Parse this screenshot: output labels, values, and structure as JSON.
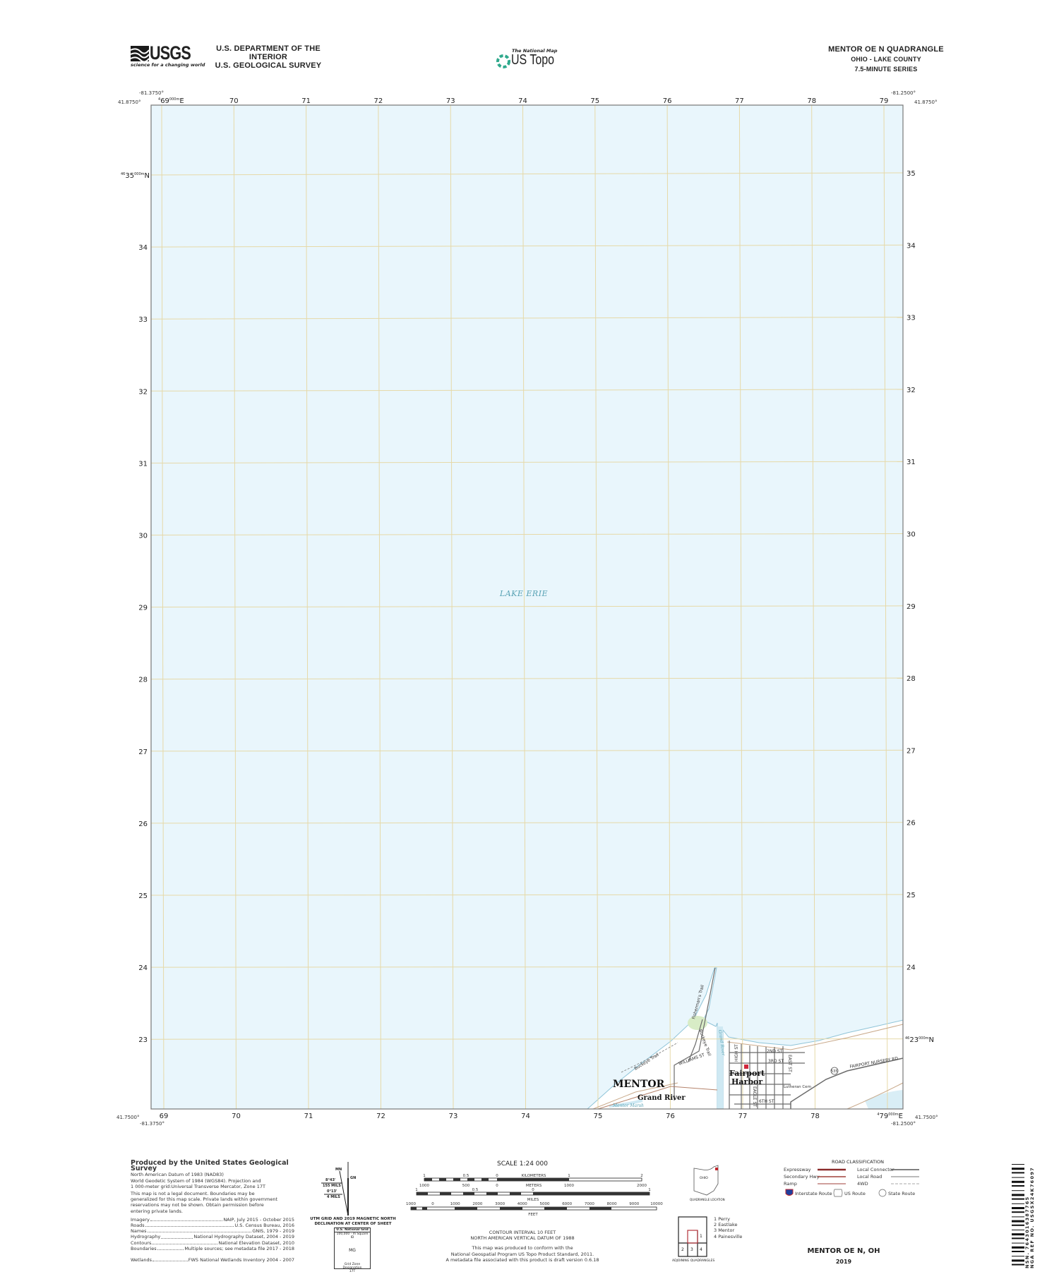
{
  "header": {
    "logo": "USGS",
    "logo_tagline": "science for a changing world",
    "dept_line1": "U.S. DEPARTMENT OF THE INTERIOR",
    "dept_line2": "U.S. GEOLOGICAL SURVEY",
    "national_map": "The National Map",
    "us_topo": "US Topo",
    "quad_title": "MENTOR OE N QUADRANGLE",
    "quad_state": "OHIO - LAKE COUNTY",
    "quad_series": "7.5-MINUTE SERIES"
  },
  "map": {
    "colors": {
      "water": "#e9f6fc",
      "grid": "#e6d9a8",
      "land": "#ffffff",
      "road": "#6b6b6b",
      "highway": "#b5836b",
      "label_water": "#5aa3b5"
    },
    "corners": {
      "top_left_lon": "-81.3750°",
      "top_left_lat": "41.8750°",
      "top_right_lon": "-81.2500°",
      "top_right_lat": "41.8750°",
      "bottom_left_lon": "-81.3750°",
      "bottom_left_lat": "41.7500°",
      "bottom_right_lon": "-81.2500°",
      "bottom_right_lat": "41.7500°"
    },
    "easting_labels": [
      "69",
      "70",
      "71",
      "72",
      "73",
      "74",
      "75",
      "76",
      "77",
      "78",
      "79"
    ],
    "easting_first": {
      "prefix": "4",
      "value": "69",
      "sup": "000m",
      "suffix": "E"
    },
    "easting_last_bottom": {
      "prefix": "4",
      "value": "79",
      "sup": "000m",
      "suffix": "E"
    },
    "northing_labels": [
      "35",
      "34",
      "33",
      "32",
      "31",
      "30",
      "29",
      "28",
      "27",
      "26",
      "25",
      "24",
      "23"
    ],
    "northing_first": {
      "prefix": "46",
      "value": "35",
      "sup": "000m",
      "suffix": "N"
    },
    "northing_last_right": {
      "prefix": "46",
      "value": "23",
      "sup": "000m",
      "suffix": "N"
    },
    "water_label": "LAKE ERIE",
    "places": {
      "mentor": "MENTOR",
      "grand_river_town": "Grand River",
      "fairport_1": "Fairport",
      "fairport_2": "Harbor",
      "mentor_marsh": "Mentor Marsh",
      "grand_river": "Grand River",
      "lutheran": "Lutheran Cem"
    },
    "roads": {
      "buckeye1": "Buckeye Trail",
      "buckeye2": "Buckeye Trail",
      "fishermans": "Fisherman's Trail",
      "williams": "WILLIAMS ST",
      "high": "HIGH ST",
      "second": "2ND ST",
      "third": "3RD ST",
      "sixth": "6TH ST",
      "eagle": "EAGLE ST",
      "east": "EAST ST",
      "nursery": "FAIRPORT NURSERY RD",
      "route": "535"
    }
  },
  "footer": {
    "produced_title": "Produced by the United States Geological Survey",
    "datum_lines": [
      "North American Datum of 1983 (NAD83)",
      "World Geodetic System of 1984 (WGS84). Projection and",
      "1 000-meter grid:Universal Transverse Mercator, Zone 17T"
    ],
    "disclaimer_lines": [
      "This map is not a legal document. Boundaries may be",
      "generalized for this map scale. Private lands within government",
      "reservations may not be shown. Obtain permission before",
      "entering private lands."
    ],
    "sources": [
      {
        "label": "Imagery",
        "value": "NAIP, July 2015 - October 2015"
      },
      {
        "label": "Roads",
        "value": "U.S. Census Bureau, 2016"
      },
      {
        "label": "Names",
        "value": "GNIS, 1979 - 2019"
      },
      {
        "label": "Hydrography",
        "value": "National Hydrography Dataset, 2004 - 2019"
      },
      {
        "label": "Contours",
        "value": "National Elevation Dataset, 2010"
      },
      {
        "label": "Boundaries",
        "value": "Multiple sources; see metadata file 2017 - 2018"
      },
      {
        "label": "Wetlands",
        "value": "FWS National Wetlands Inventory 2004 - 2007"
      }
    ],
    "declination": {
      "mn": "MN",
      "gn": "GN",
      "angle1": "8°43'",
      "mils1": "155 MILS",
      "angle2": "0°13'",
      "mils2": "4 MILS",
      "caption1": "UTM GRID AND 2019 MAGNETIC NORTH",
      "caption2": "DECLINATION AT CENTER OF SHEET"
    },
    "usng": {
      "title": "U.S. National Grid",
      "sub": "100,000 - m Square ID",
      "id": "MG",
      "gzd_label": "Grid Zone Designation",
      "gzd": "17T"
    },
    "scale": {
      "title": "SCALE 1:24 000",
      "km_ticks": [
        "1",
        "0.5",
        "0",
        "1",
        "2"
      ],
      "km_label": "KILOMETERS",
      "m_ticks": [
        "1000",
        "500",
        "0",
        "1000",
        "2000"
      ],
      "m_label": "METERS",
      "mi_ticks": [
        "1",
        "0.5",
        "0",
        "1"
      ],
      "mi_label": "MILES",
      "ft_ticks": [
        "1000",
        "0",
        "1000",
        "2000",
        "3000",
        "4000",
        "5000",
        "6000",
        "7000",
        "8000",
        "9000",
        "10000"
      ],
      "ft_label": "FEET"
    },
    "contour1": "CONTOUR INTERVAL 10 FEET",
    "contour2": "NORTH AMERICAN VERTICAL DATUM OF 1988",
    "standard_lines": [
      "This map was produced to conform with the",
      "National Geospatial Program US Topo Product Standard, 2011.",
      "A metadata file associated with this product is draft version 0.6.18"
    ],
    "location": {
      "state": "OHIO",
      "caption": "QUADRANGLE LOCATION"
    },
    "adjoining": {
      "caption": "ADJOINING QUADRANGLES",
      "cells": [
        "1",
        "2",
        "3",
        "4"
      ],
      "names": [
        "1 Perry",
        "2 Eastlake",
        "3 Mentor",
        "4 Painesville"
      ]
    },
    "roads": {
      "title": "ROAD CLASSIFICATION",
      "items": [
        "Expressway",
        "Secondary Hwy",
        "Ramp",
        "Local Connector",
        "Local Road",
        "4WD"
      ],
      "shields": [
        "Interstate Route",
        "US Route",
        "State Route"
      ]
    },
    "sheet_title": "MENTOR OE N,  OH",
    "year": "2019",
    "barcode": {
      "nsn_label": "NSN.",
      "nsn": "7643016387765",
      "nga_label": "NGA REF NO.",
      "nga": "USGSX24K76097"
    }
  }
}
